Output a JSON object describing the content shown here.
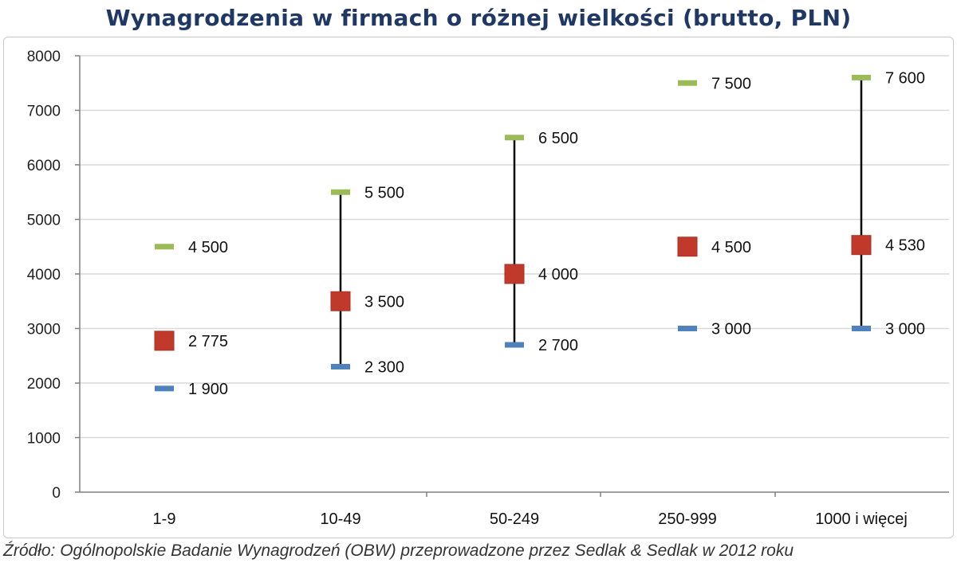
{
  "title": "Wynagrodzenia w firmach o różnej wielkości (brutto, PLN)",
  "source_note": "Źródło: Ogólnopolskie Badanie Wynagrodzeń (OBW) przeprowadzone przez Sedlak & Sedlak w 2012 roku",
  "colors": {
    "max": "#9bbb59",
    "median": "#c0392b",
    "min": "#4f81bd",
    "whisker": "#000000",
    "grid": "#d9d9d9",
    "axis": "#808080"
  },
  "chart_data": {
    "type": "scatter",
    "categories": [
      "1-9",
      "10-49",
      "50-249",
      "250-999",
      "1000 i więcej"
    ],
    "ylim": [
      0,
      8000
    ],
    "yticks": [
      0,
      1000,
      2000,
      3000,
      4000,
      5000,
      6000,
      7000,
      8000
    ],
    "grid": true,
    "legend": "none",
    "series": [
      {
        "key": "max",
        "marker": "dash",
        "values": [
          4500,
          5500,
          6500,
          7500,
          7600
        ],
        "labels": [
          "4 500",
          "5 500",
          "6 500",
          "7 500",
          "7 600"
        ]
      },
      {
        "key": "median",
        "marker": "square",
        "values": [
          2775,
          3500,
          4000,
          4500,
          4530
        ],
        "labels": [
          "2 775",
          "3 500",
          "4 000",
          "4 500",
          "4 530"
        ]
      },
      {
        "key": "min",
        "marker": "dash",
        "values": [
          1900,
          2300,
          2700,
          3000,
          3000
        ],
        "labels": [
          "1 900",
          "2 300",
          "2 700",
          "3 000",
          "3 000"
        ]
      }
    ],
    "whiskers": [
      false,
      true,
      true,
      false,
      true
    ]
  }
}
